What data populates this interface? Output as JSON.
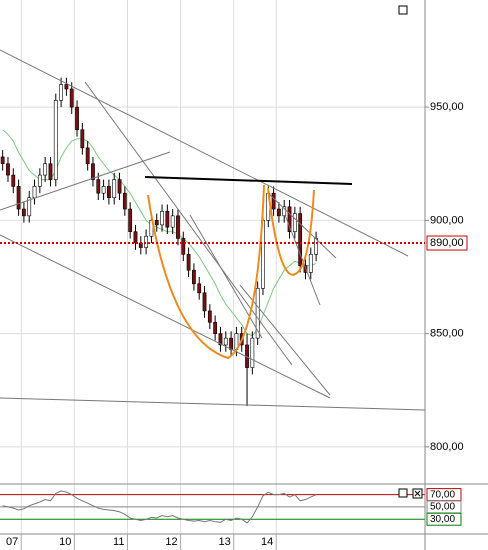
{
  "chart_data": [
    {
      "type": "candlestick",
      "xlim": [
        -0.5,
        79.5
      ],
      "xticks": [
        {
          "value": 5,
          "label": "07"
        },
        {
          "value": 15,
          "label": "10"
        },
        {
          "value": 25,
          "label": "11"
        },
        {
          "value": 35,
          "label": "12"
        },
        {
          "value": 45,
          "label": "13"
        },
        {
          "value": 53,
          "label": "14"
        }
      ],
      "ylim": [
        783.6,
        997.3
      ],
      "yticks": [
        {
          "value": 800,
          "label": "800,00"
        },
        {
          "value": 850,
          "label": "850,00"
        },
        {
          "value": 900,
          "label": "900,00"
        },
        {
          "value": 950,
          "label": "950,00"
        }
      ],
      "grid": true,
      "up_color": "#ffffff",
      "down_color": "#7a1010",
      "open": [
        928,
        925,
        920,
        915,
        905,
        902,
        910,
        915,
        920,
        925,
        918,
        953,
        960,
        958,
        950,
        940,
        932,
        925,
        918,
        912,
        915,
        910,
        918,
        912,
        905,
        895,
        890,
        888,
        893,
        900,
        898,
        904,
        897,
        902,
        892,
        885,
        878,
        872,
        868,
        860,
        855,
        850,
        845,
        848,
        843,
        850,
        845,
        835,
        848,
        870,
        900,
        912,
        905,
        902,
        906,
        895,
        903,
        880,
        877,
        885
      ],
      "high": [
        931,
        928,
        923,
        918,
        908,
        913,
        918,
        923,
        928,
        928,
        956,
        963,
        963,
        961,
        953,
        943,
        935,
        928,
        921,
        918,
        918,
        921,
        921,
        915,
        908,
        898,
        893,
        896,
        903,
        903,
        907,
        907,
        905,
        905,
        895,
        888,
        881,
        875,
        871,
        863,
        858,
        853,
        851,
        851,
        853,
        853,
        850,
        851,
        873,
        903,
        915,
        915,
        908,
        909,
        909,
        906,
        906,
        883,
        888,
        895
      ],
      "low": [
        922,
        917,
        912,
        902,
        899,
        899,
        907,
        912,
        917,
        915,
        915,
        950,
        955,
        947,
        937,
        929,
        922,
        915,
        909,
        909,
        907,
        907,
        909,
        902,
        892,
        887,
        885,
        885,
        890,
        895,
        895,
        894,
        894,
        889,
        882,
        875,
        869,
        865,
        857,
        852,
        847,
        842,
        842,
        840,
        840,
        842,
        818,
        832,
        845,
        867,
        897,
        902,
        899,
        899,
        892,
        892,
        877,
        874,
        874,
        882
      ],
      "close": [
        925,
        920,
        915,
        905,
        902,
        910,
        915,
        920,
        925,
        918,
        953,
        960,
        958,
        950,
        940,
        932,
        925,
        918,
        912,
        915,
        910,
        918,
        912,
        905,
        895,
        890,
        888,
        893,
        900,
        898,
        904,
        897,
        902,
        892,
        885,
        878,
        872,
        868,
        860,
        855,
        850,
        845,
        848,
        843,
        850,
        845,
        835,
        848,
        870,
        900,
        912,
        905,
        902,
        906,
        895,
        903,
        880,
        877,
        885,
        892
      ],
      "overlay": {
        "color": "#7ec87e",
        "values": [
          940,
          938,
          935,
          930,
          926,
          922,
          920,
          918,
          918,
          918,
          922,
          928,
          932,
          935,
          936,
          936,
          935,
          932,
          928,
          925,
          922,
          920,
          918,
          915,
          912,
          908,
          904,
          900,
          898,
          897,
          896,
          895,
          895,
          894,
          892,
          890,
          887,
          884,
          880,
          876,
          872,
          867,
          863,
          860,
          857,
          854,
          850,
          849,
          852,
          858,
          864,
          870,
          874,
          878,
          880,
          882,
          881,
          880,
          880,
          881
        ]
      },
      "price_line": {
        "value": 890,
        "label": "890,00",
        "color": "#d00000"
      }
    },
    {
      "type": "line",
      "xlim": [
        -0.5,
        79.5
      ],
      "ylim": [
        6,
        84
      ],
      "yticks": [
        {
          "value": 70,
          "label": "70,00"
        },
        {
          "value": 50,
          "label": "50,00"
        },
        {
          "value": 30,
          "label": "30,00"
        }
      ],
      "color": "#777777",
      "values": [
        52,
        50,
        48,
        45,
        47,
        52,
        55,
        58,
        62,
        60,
        72,
        76,
        74,
        70,
        64,
        60,
        56,
        52,
        48,
        46,
        45,
        44,
        42,
        38,
        32,
        30,
        28,
        30,
        33,
        32,
        36,
        34,
        36,
        32,
        30,
        28,
        27,
        28,
        26,
        28,
        26,
        25,
        30,
        28,
        32,
        30,
        24,
        34,
        50,
        68,
        74,
        70,
        70,
        72,
        66,
        70,
        60,
        62,
        66,
        70
      ]
    }
  ]
}
